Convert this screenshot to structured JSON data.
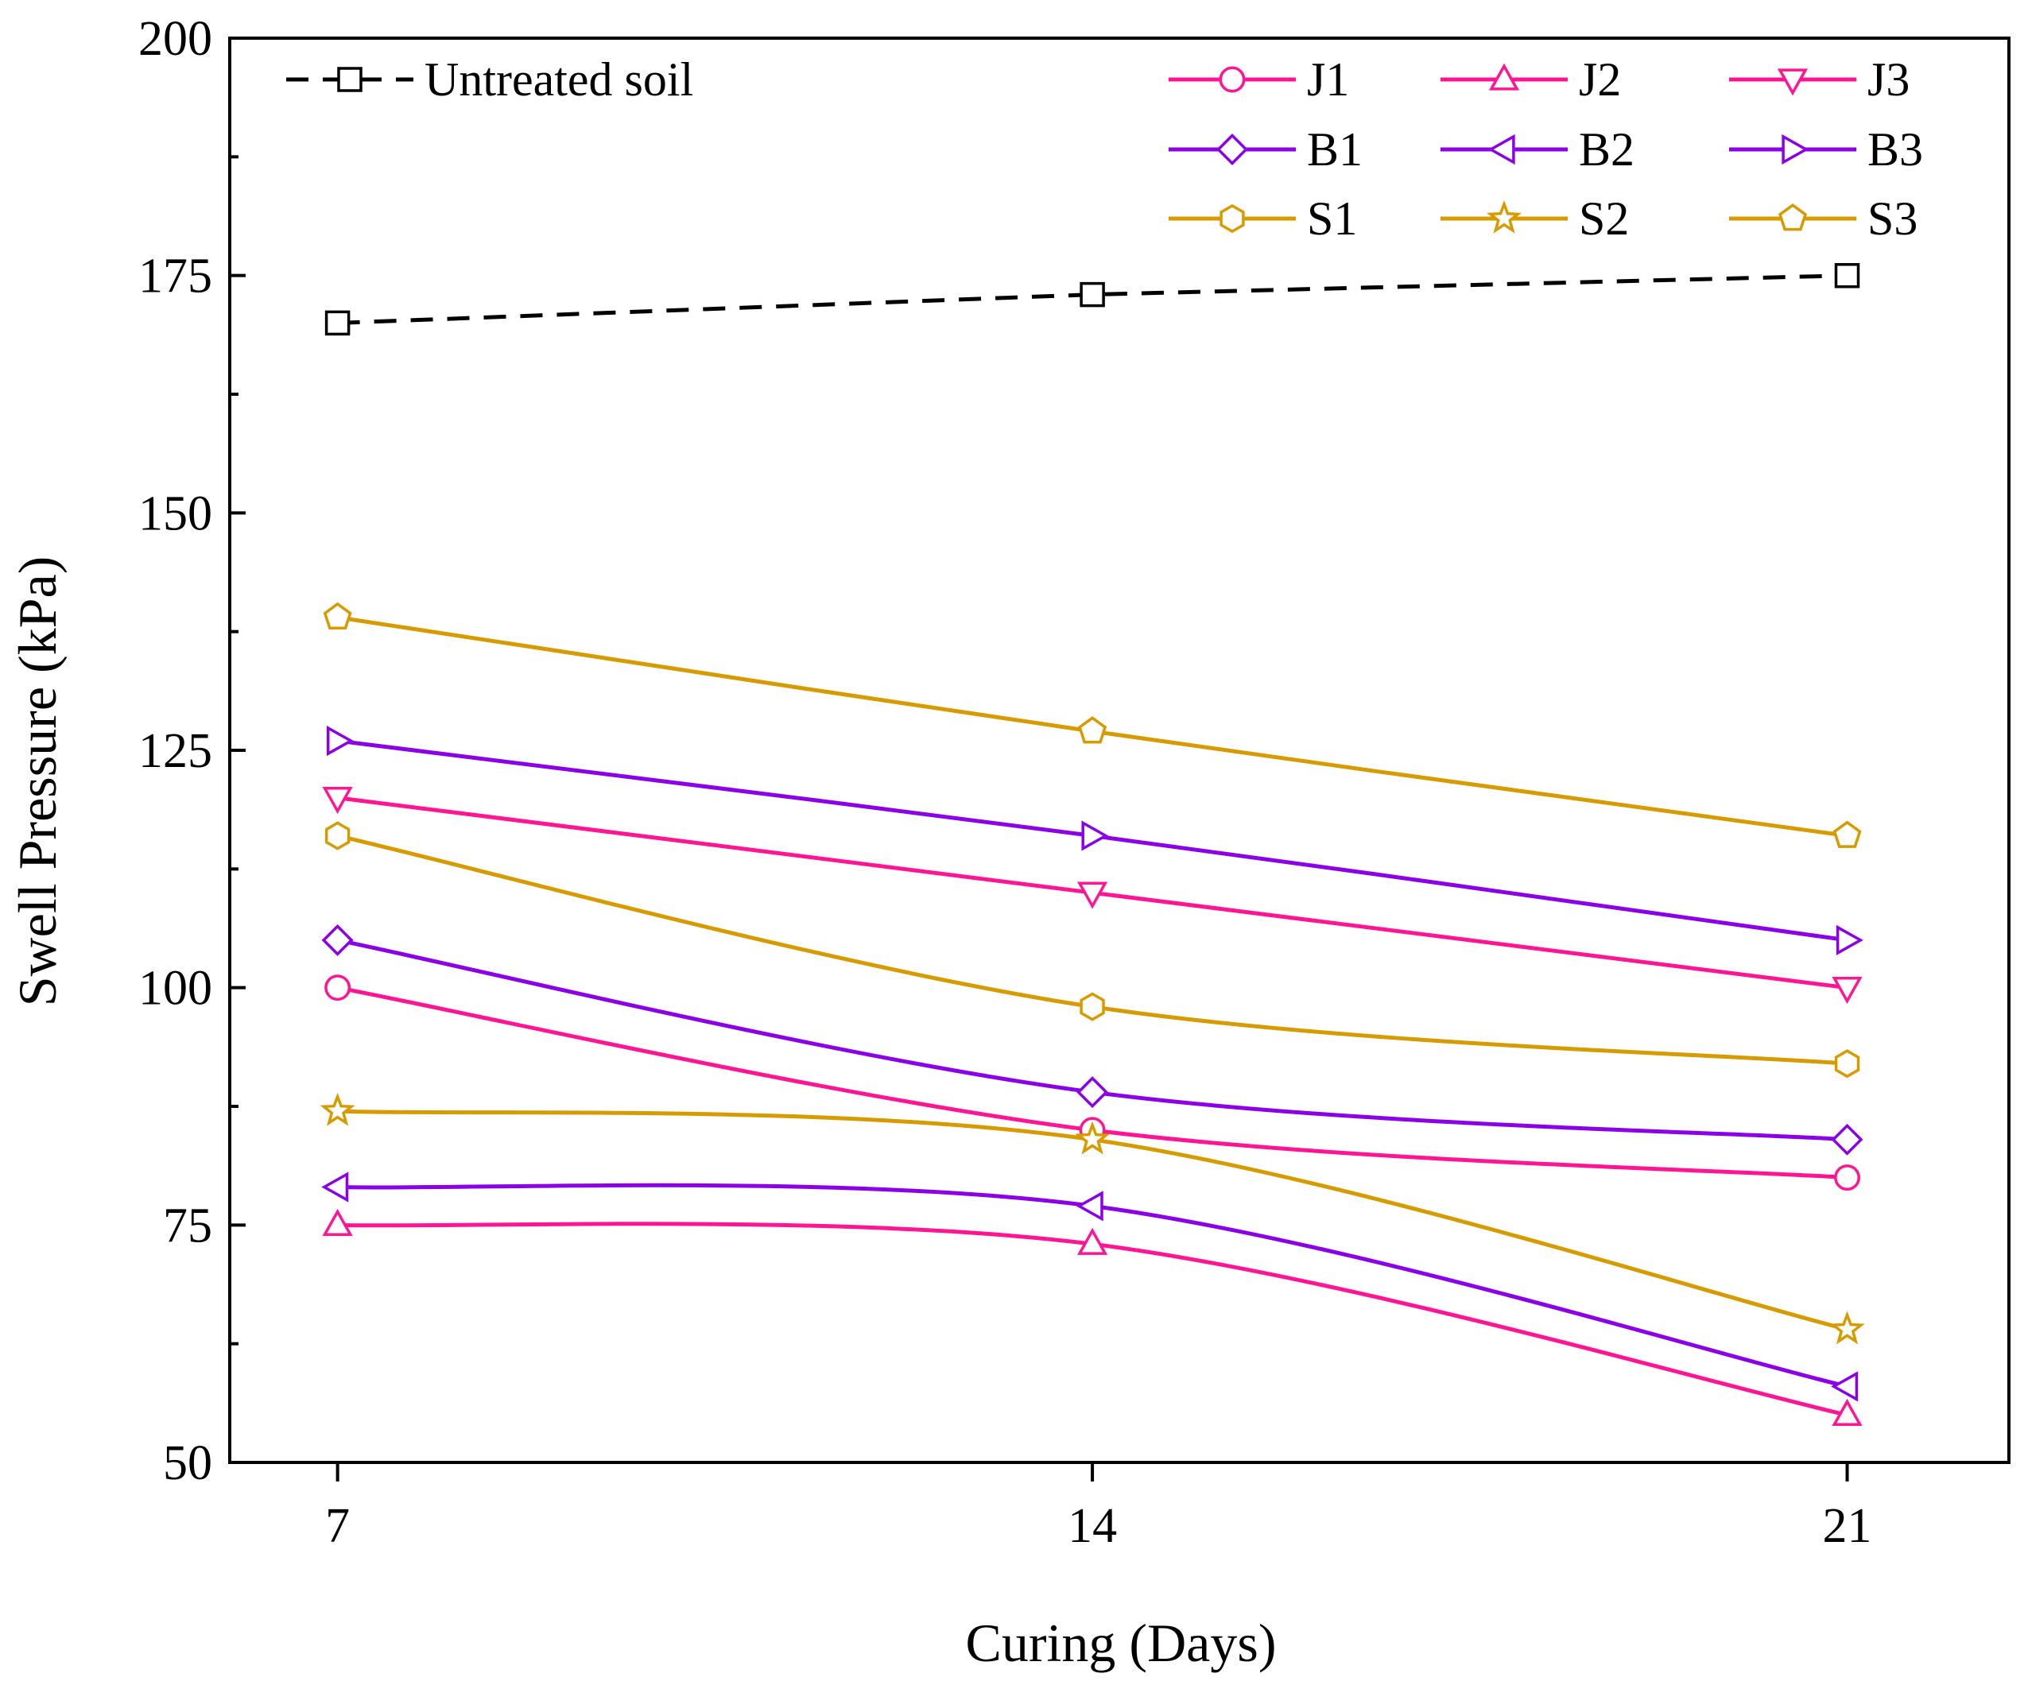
{
  "chart_data": {
    "type": "line",
    "title": "",
    "xlabel": "Curing (Days)",
    "ylabel": "Swell Pressure (kPa)",
    "x": [
      7,
      14,
      21
    ],
    "x_ticks": [
      "7",
      "14",
      "21"
    ],
    "xlim": [
      6,
      22.5
    ],
    "ylim": [
      50,
      200
    ],
    "y_ticks": [
      "50",
      "75",
      "100",
      "125",
      "150",
      "175",
      "200"
    ],
    "grid": false,
    "series": [
      {
        "name": "Untreated soil",
        "values": [
          170,
          173,
          175
        ],
        "color": "#000000",
        "marker": "square",
        "dashed": true
      },
      {
        "name": "J1",
        "values": [
          100,
          85,
          80
        ],
        "color": "#ff1493",
        "marker": "circle",
        "dashed": false
      },
      {
        "name": "J2",
        "values": [
          75,
          73,
          55
        ],
        "color": "#ff1493",
        "marker": "triangle-up",
        "dashed": false
      },
      {
        "name": "J3",
        "values": [
          120,
          110,
          100
        ],
        "color": "#ff1493",
        "marker": "triangle-down",
        "dashed": false
      },
      {
        "name": "B1",
        "values": [
          105,
          89,
          84
        ],
        "color": "#8b00e8",
        "marker": "diamond",
        "dashed": false
      },
      {
        "name": "B2",
        "values": [
          79,
          77,
          58
        ],
        "color": "#8b00e8",
        "marker": "triangle-left",
        "dashed": false
      },
      {
        "name": "B3",
        "values": [
          126,
          116,
          105
        ],
        "color": "#8b00e8",
        "marker": "triangle-right",
        "dashed": false
      },
      {
        "name": "S1",
        "values": [
          116,
          98,
          92
        ],
        "color": "#d79b00",
        "marker": "hexagon",
        "dashed": false
      },
      {
        "name": "S2",
        "values": [
          87,
          84,
          64
        ],
        "color": "#d79b00",
        "marker": "star",
        "dashed": false
      },
      {
        "name": "S3",
        "values": [
          139,
          127,
          116
        ],
        "color": "#d79b00",
        "marker": "pentagon",
        "dashed": false
      }
    ]
  }
}
